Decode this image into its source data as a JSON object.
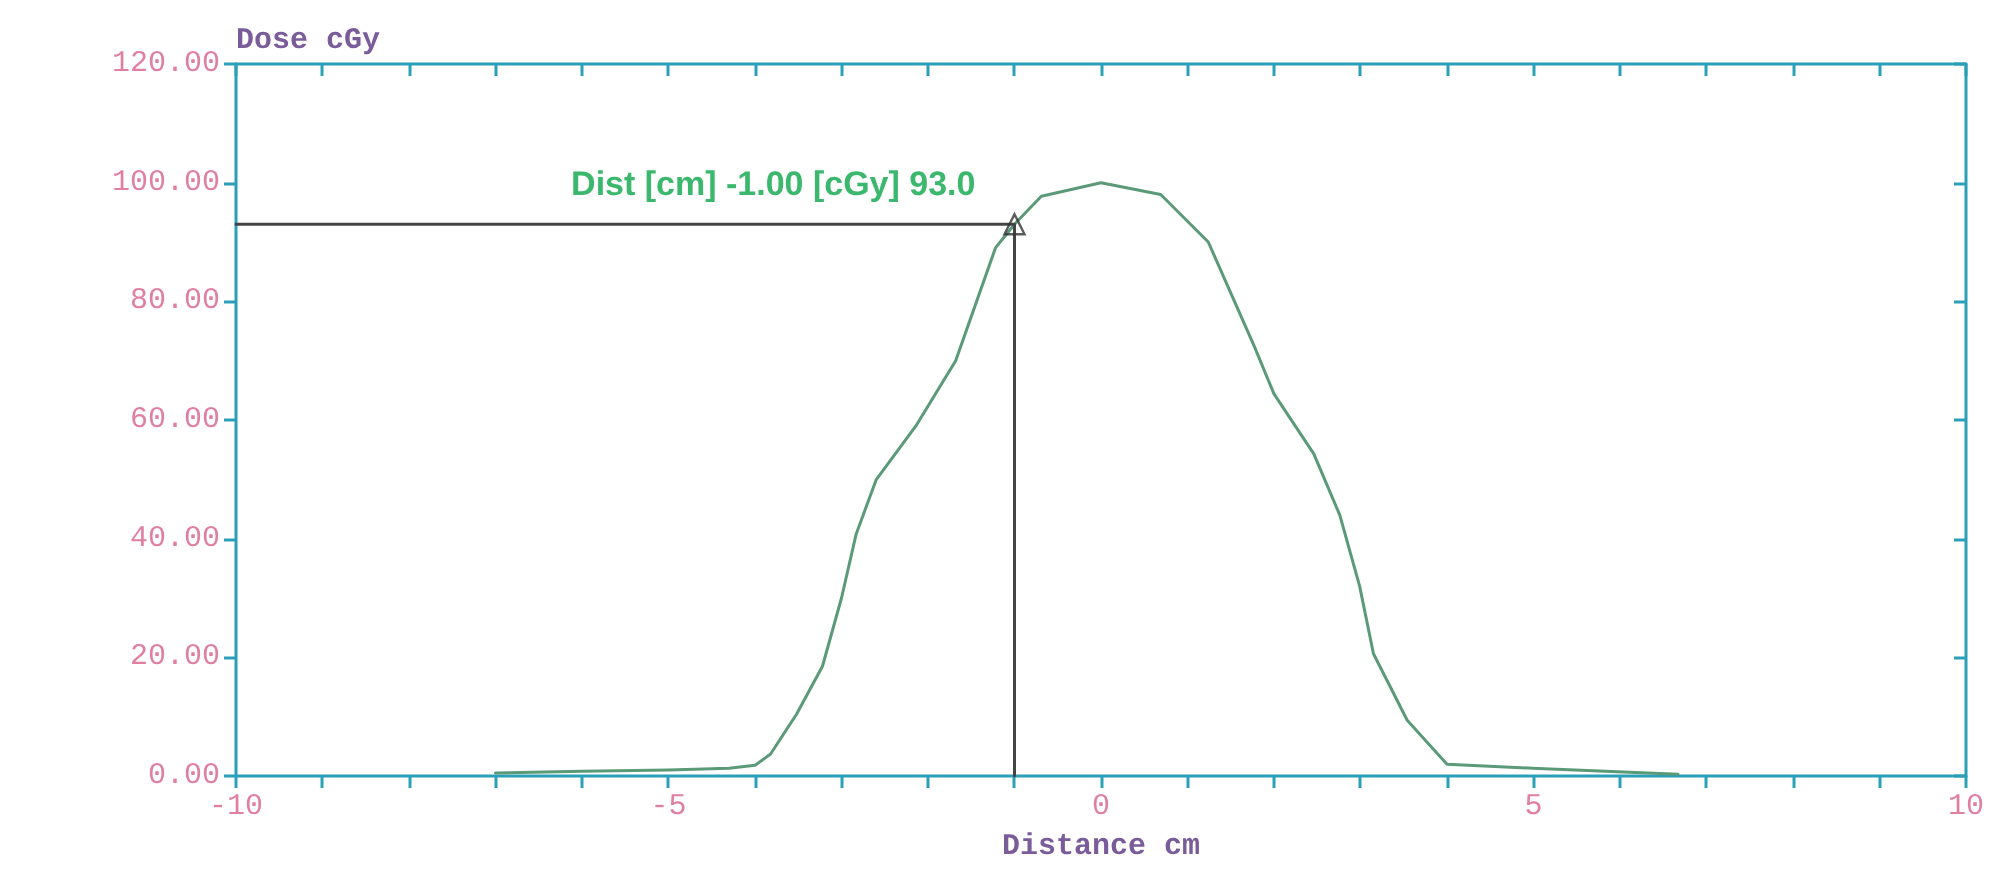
{
  "chart_data": {
    "type": "line",
    "ylabel": "Dose cGy",
    "xlabel": "Distance cm",
    "annotations": [
      {
        "text": "Dist [cm] -1.00 [cGy] 93.0",
        "x": -1,
        "y": 93
      }
    ],
    "xlim": [
      -10,
      10
    ],
    "xticks": [
      -10,
      {
        "value": -9,
        "label": null
      },
      {
        "value": -8,
        "label": null
      },
      {
        "value": -7,
        "label": null
      },
      {
        "value": -6,
        "label": null
      },
      -5,
      {
        "value": -4,
        "label": null
      },
      {
        "value": -3,
        "label": null
      },
      {
        "value": -2,
        "label": null
      },
      {
        "value": -1,
        "label": null
      },
      0,
      {
        "value": 1,
        "label": null
      },
      {
        "value": 2,
        "label": null
      },
      {
        "value": 3,
        "label": null
      },
      {
        "value": 4,
        "label": null
      },
      5,
      {
        "value": 6,
        "label": null
      },
      {
        "value": 7,
        "label": null
      },
      {
        "value": 8,
        "label": null
      },
      {
        "value": 9,
        "label": null
      },
      10
    ],
    "ylim": [
      0,
      120
    ],
    "yticks": [
      {
        "value": 0,
        "label": "0.00"
      },
      {
        "value": 20,
        "label": "20.00"
      },
      {
        "value": 40,
        "label": "40.00"
      },
      {
        "value": 60,
        "label": "60.00"
      },
      {
        "value": 80,
        "label": "80.00"
      },
      {
        "value": 100,
        "label": "100.00"
      },
      {
        "value": 120,
        "label": "120.00"
      }
    ],
    "grid": false,
    "marker": "none",
    "line_style": "solid",
    "series": [
      {
        "color": "#5a9a78",
        "x": [
          -7.0,
          -6.0,
          -5.0,
          -4.3,
          -4.0,
          -3.82,
          -3.52,
          -3.22,
          -3.0,
          -2.83,
          -2.6,
          -2.14,
          -1.68,
          -1.22,
          -1.0,
          -0.69,
          0,
          0.69,
          1.24,
          1.77,
          2.0,
          2.46,
          2.76,
          2.99,
          3.15,
          3.54,
          4.0,
          4.99,
          6.67
        ],
        "values": [
          0.5,
          0.8,
          1.0,
          1.3,
          1.8,
          3.7,
          10.4,
          18.5,
          30,
          40.8,
          49.9,
          59,
          70,
          89,
          93,
          97.7,
          100,
          98,
          90,
          72.5,
          64.4,
          54.3,
          44,
          32,
          20.6,
          9.4,
          2,
          1.3,
          0.3
        ]
      },
      {
        "color": "#444444",
        "x": [
          -10,
          -1,
          -1
        ],
        "values": [
          93,
          93,
          0
        ]
      },
      {
        "type": "scatter",
        "color": "#333333",
        "marker": "triangle",
        "x": [
          -1
        ],
        "values": [
          93
        ]
      }
    ]
  }
}
